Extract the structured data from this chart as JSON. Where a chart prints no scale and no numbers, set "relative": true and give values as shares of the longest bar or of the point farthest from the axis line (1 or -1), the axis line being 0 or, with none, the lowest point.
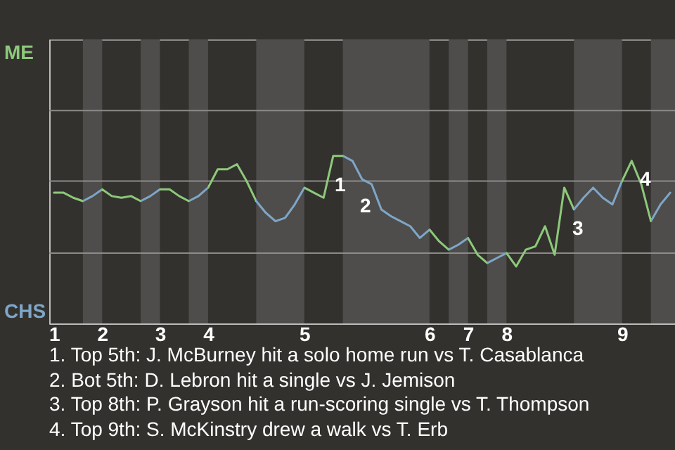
{
  "chart_data": {
    "type": "line",
    "relative": true,
    "ref_lines": [
      {
        "axis": "y",
        "value": 0.42,
        "color": "#8c8b89"
      },
      {
        "axis": "y",
        "value": 0.85,
        "color": "#8c8b89"
      },
      {
        "axis": "y",
        "value": 1.27,
        "color": "#8c8b89"
      }
    ],
    "categories": [
      "1",
      null,
      null,
      null,
      null,
      "2",
      null,
      null,
      null,
      null,
      null,
      "3",
      null,
      null,
      null,
      null,
      "4",
      null,
      null,
      null,
      null,
      null,
      null,
      null,
      null,
      null,
      "5",
      null,
      null,
      null,
      null,
      null,
      null,
      null,
      null,
      null,
      null,
      null,
      null,
      "6",
      null,
      null,
      null,
      "7",
      null,
      null,
      null,
      "8",
      null,
      null,
      null,
      null,
      null,
      null,
      null,
      null,
      null,
      null,
      null,
      "9",
      null,
      null,
      null,
      null,
      null
    ],
    "series": [
      {
        "values": [
          0.78,
          0.78,
          0.75,
          0.73,
          0.76,
          0.8,
          0.76,
          0.75,
          0.76,
          0.73,
          0.76,
          0.8,
          0.8,
          0.76,
          0.73,
          0.76,
          0.81,
          0.92,
          0.92,
          0.95,
          0.85,
          0.73,
          0.66,
          0.61,
          0.63,
          0.71,
          0.81,
          0.78,
          0.75,
          1,
          1,
          0.97,
          0.86,
          0.83,
          0.68,
          0.64,
          0.61,
          0.58,
          0.51,
          0.56,
          0.49,
          0.44,
          0.47,
          0.51,
          0.41,
          0.36,
          0.39,
          0.42,
          0.34,
          0.44,
          0.46,
          0.58,
          0.41,
          0.81,
          0.68,
          0.75,
          0.81,
          0.75,
          0.71,
          0.85,
          0.97,
          0.83,
          0.61,
          0.71,
          0.78
        ],
        "colors": [
          "#8cc97a",
          "#8cc97a",
          "#8cc97a",
          "#7ea6c8",
          "#7ea6c8",
          "#8cc97a",
          "#8cc97a",
          "#8cc97a",
          "#8cc97a",
          "#7ea6c8",
          "#7ea6c8",
          "#8cc97a",
          "#8cc97a",
          "#8cc97a",
          "#7ea6c8",
          "#7ea6c8",
          "#8cc97a",
          "#8cc97a",
          "#8cc97a",
          "#8cc97a",
          "#8cc97a",
          "#7ea6c8",
          "#7ea6c8",
          "#7ea6c8",
          "#7ea6c8",
          "#7ea6c8",
          "#8cc97a",
          "#8cc97a",
          "#8cc97a",
          "#8cc97a",
          "#7ea6c8",
          "#7ea6c8",
          "#7ea6c8",
          "#7ea6c8",
          "#7ea6c8",
          "#7ea6c8",
          "#7ea6c8",
          "#7ea6c8",
          "#7ea6c8",
          "#8cc97a",
          "#8cc97a",
          "#7ea6c8",
          "#7ea6c8",
          "#8cc97a",
          "#8cc97a",
          "#7ea6c8",
          "#7ea6c8",
          "#8cc97a",
          "#8cc97a",
          "#8cc97a",
          "#8cc97a",
          "#8cc97a",
          "#8cc97a",
          "#8cc97a",
          "#7ea6c8",
          "#7ea6c8",
          "#7ea6c8",
          "#7ea6c8",
          "#7ea6c8",
          "#8cc97a",
          "#8cc97a",
          "#8cc97a",
          "#7ea6c8",
          "#7ea6c8",
          "#7ea6c8"
        ]
      }
    ],
    "annotations": [
      "ME",
      "CHS",
      "1",
      "2",
      "3",
      "4",
      "1. Top 5th: J. McBurney hit a solo home run vs T. Casablanca",
      "2. Bot 5th: D. Lebron hit a single vs J. Jemison",
      "3. Top 8th: P. Grayson hit a run-scoring single vs T. Thompson",
      "4. Top 9th: S. McKinstry drew a walk vs T. Erb"
    ]
  }
}
